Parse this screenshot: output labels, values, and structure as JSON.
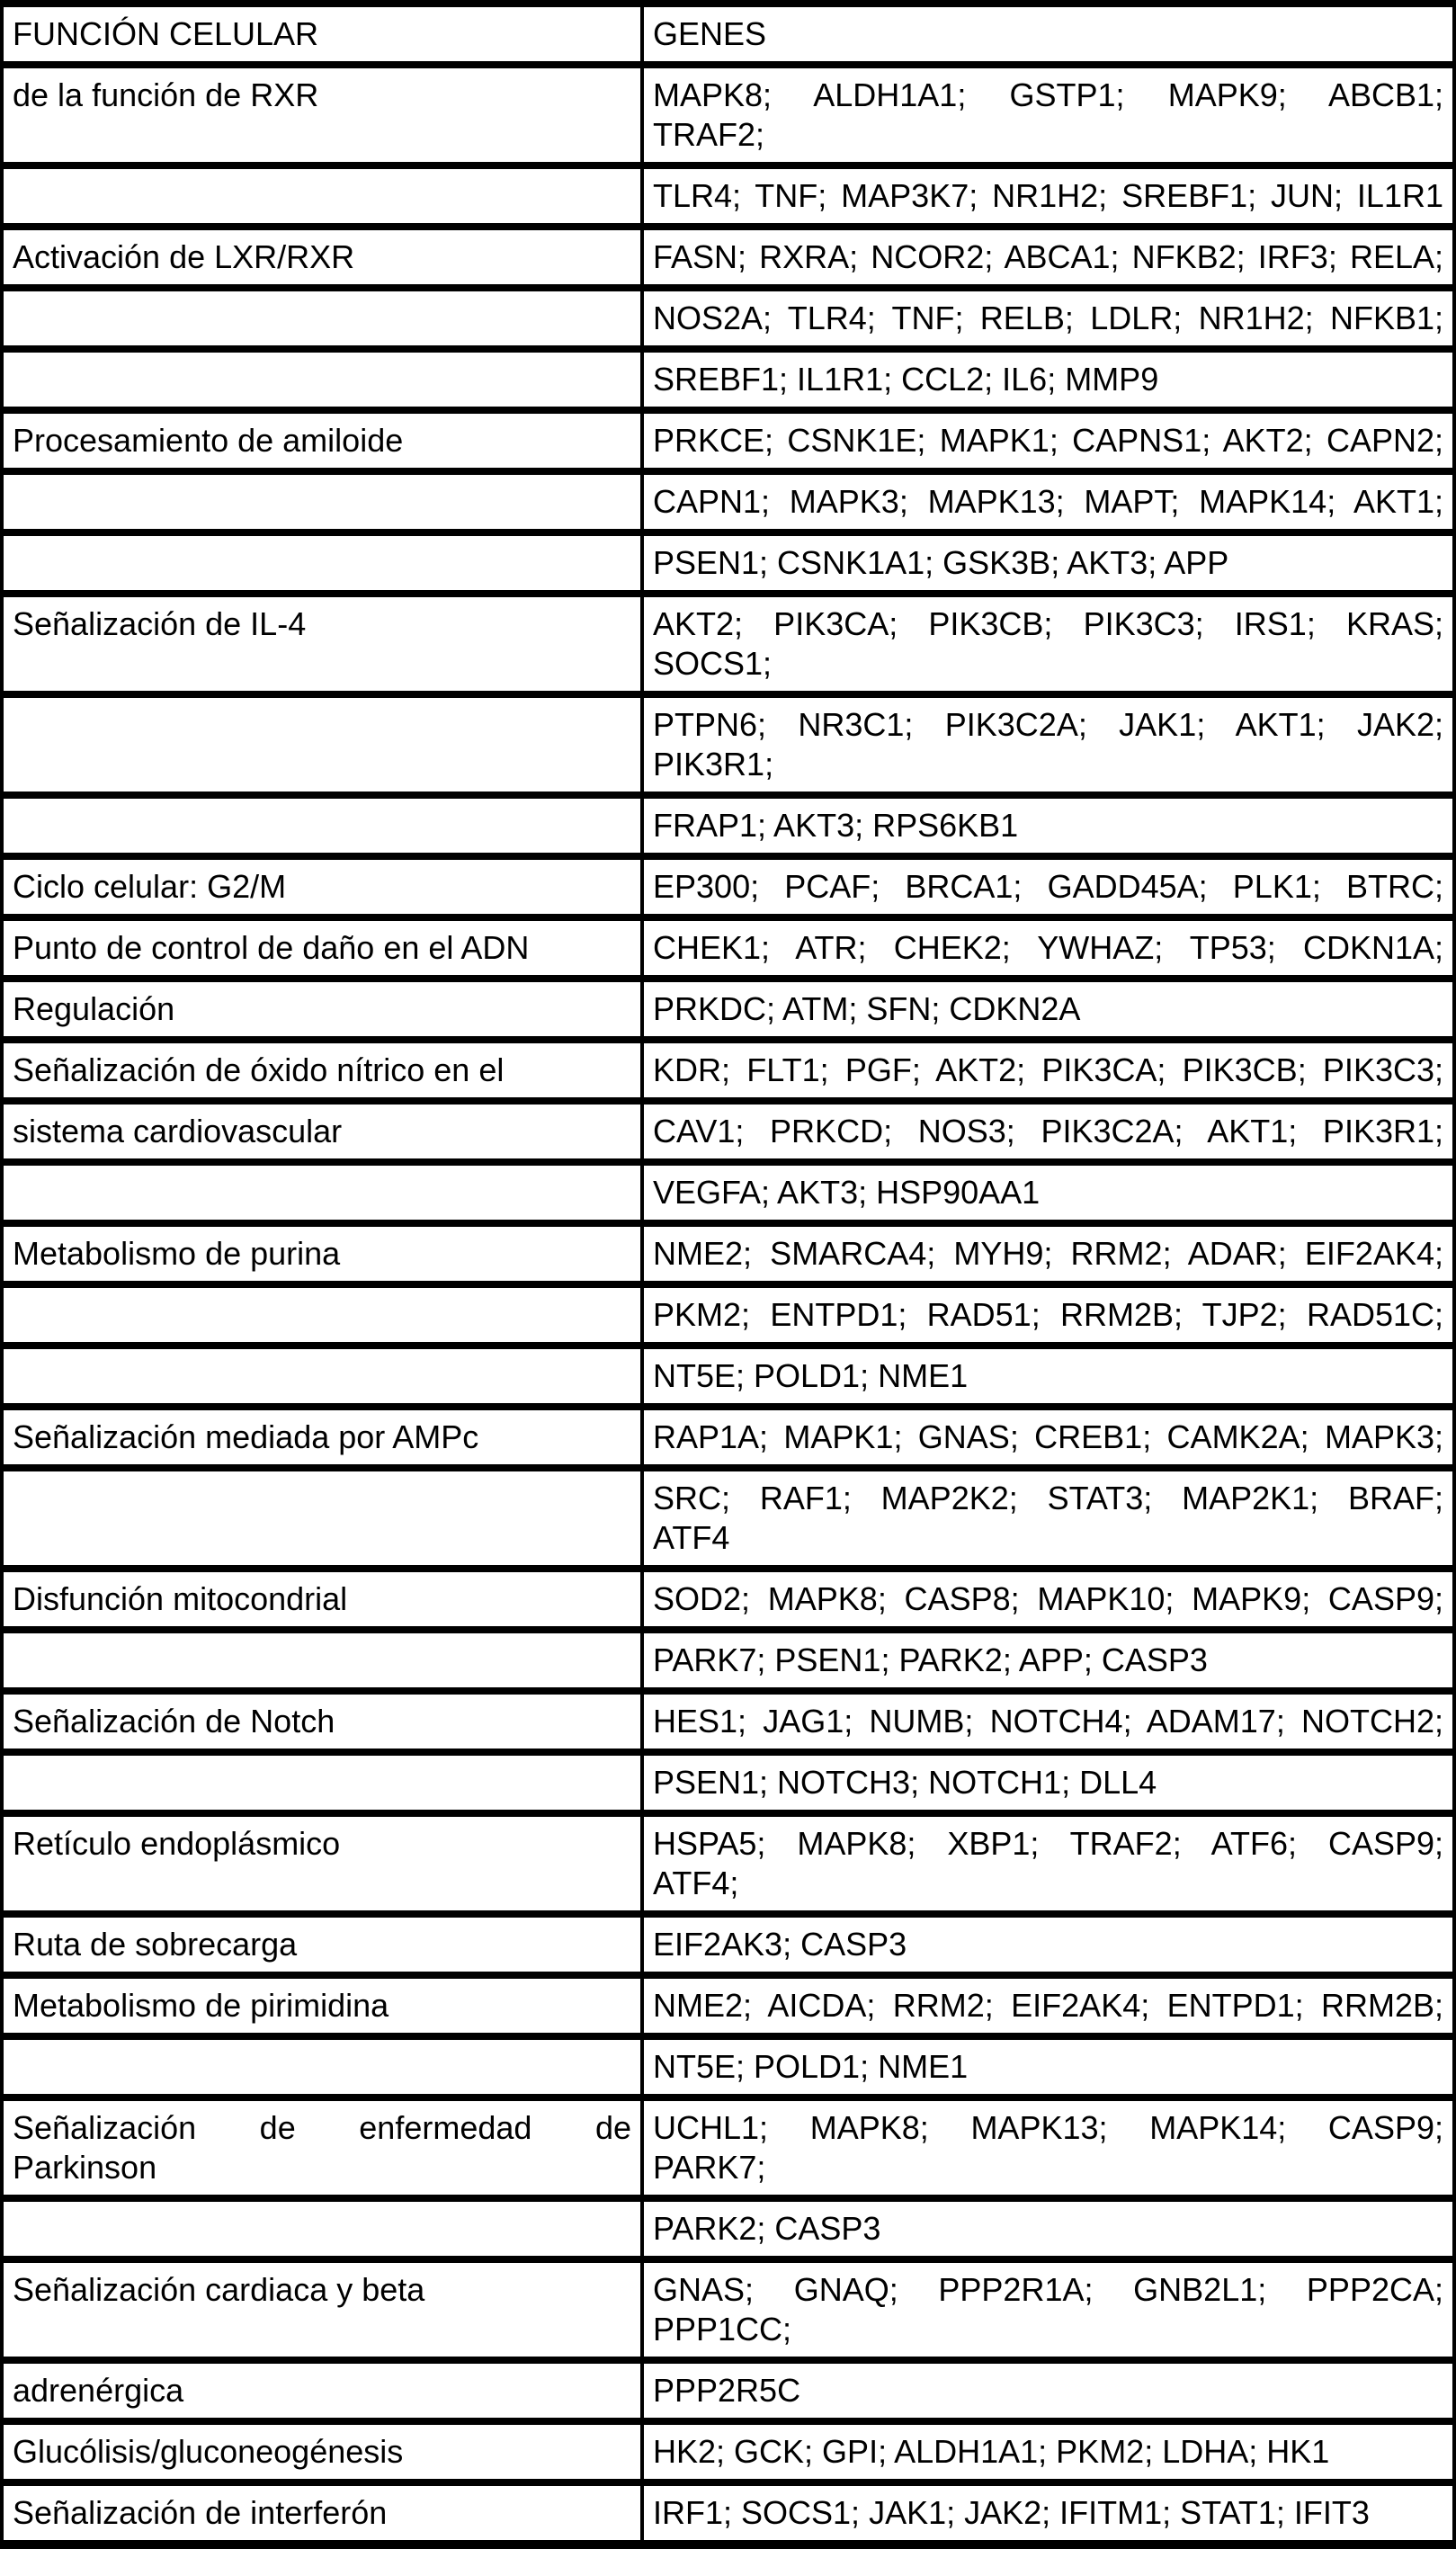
{
  "table": {
    "columns": [
      "FUNCIÓN CELULAR",
      "GENES"
    ],
    "rows": [
      {
        "funcion": {
          "lines": [
            "de la función de RXR"
          ]
        },
        "genes": {
          "lines": [
            "MAPK8; ALDH1A1; GSTP1; MAPK9; ABCB1;",
            "TRAF2;"
          ]
        }
      },
      {
        "funcion": {
          "lines": []
        },
        "genes": {
          "lines": [
            "TLR4; TNF; MAP3K7; NR1H2; SREBF1; JUN; IL1R1"
          ],
          "fill": true
        }
      },
      {
        "funcion": {
          "lines": [
            "Activación de LXR/RXR"
          ]
        },
        "genes": {
          "lines": [
            "FASN; RXRA; NCOR2; ABCA1; NFKB2; IRF3; RELA;"
          ],
          "fill": true
        }
      },
      {
        "funcion": {
          "lines": []
        },
        "genes": {
          "lines": [
            "NOS2A; TLR4; TNF; RELB; LDLR; NR1H2; NFKB1;"
          ],
          "fill": true
        }
      },
      {
        "funcion": {
          "lines": []
        },
        "genes": {
          "lines": [
            "SREBF1; IL1R1; CCL2; IL6; MMP9"
          ]
        }
      },
      {
        "funcion": {
          "lines": [
            "Procesamiento de amiloide"
          ]
        },
        "genes": {
          "lines": [
            "PRKCE; CSNK1E; MAPK1; CAPNS1; AKT2; CAPN2;"
          ],
          "fill": true
        }
      },
      {
        "funcion": {
          "lines": []
        },
        "genes": {
          "lines": [
            "CAPN1; MAPK3; MAPK13; MAPT; MAPK14; AKT1;"
          ],
          "fill": true
        }
      },
      {
        "funcion": {
          "lines": []
        },
        "genes": {
          "lines": [
            "PSEN1; CSNK1A1; GSK3B; AKT3; APP"
          ]
        }
      },
      {
        "funcion": {
          "lines": [
            "Señalización de IL-4"
          ]
        },
        "genes": {
          "lines": [
            "AKT2; PIK3CA; PIK3CB; PIK3C3; IRS1; KRAS;",
            "SOCS1;"
          ]
        }
      },
      {
        "funcion": {
          "lines": []
        },
        "genes": {
          "lines": [
            "PTPN6; NR3C1; PIK3C2A; JAK1; AKT1; JAK2;",
            "PIK3R1;"
          ]
        }
      },
      {
        "funcion": {
          "lines": []
        },
        "genes": {
          "lines": [
            "FRAP1; AKT3; RPS6KB1"
          ]
        }
      },
      {
        "funcion": {
          "lines": [
            "Ciclo celular: G2/M"
          ]
        },
        "genes": {
          "lines": [
            "EP300; PCAF; BRCA1; GADD45A; PLK1; BTRC;"
          ],
          "fill": true
        }
      },
      {
        "funcion": {
          "lines": [
            "Punto de control de daño en el ADN"
          ]
        },
        "genes": {
          "lines": [
            "CHEK1; ATR; CHEK2; YWHAZ; TP53; CDKN1A;"
          ],
          "fill": true
        }
      },
      {
        "funcion": {
          "lines": [
            "Regulación"
          ]
        },
        "genes": {
          "lines": [
            "PRKDC; ATM; SFN; CDKN2A"
          ]
        }
      },
      {
        "funcion": {
          "lines": [
            "Señalización de óxido nítrico en el"
          ]
        },
        "genes": {
          "lines": [
            "KDR; FLT1; PGF; AKT2; PIK3CA; PIK3CB; PIK3C3;"
          ],
          "fill": true
        }
      },
      {
        "funcion": {
          "lines": [
            "sistema cardiovascular"
          ]
        },
        "genes": {
          "lines": [
            "CAV1; PRKCD; NOS3; PIK3C2A; AKT1; PIK3R1;"
          ],
          "fill": true
        }
      },
      {
        "funcion": {
          "lines": []
        },
        "genes": {
          "lines": [
            "VEGFA; AKT3; HSP90AA1"
          ]
        }
      },
      {
        "funcion": {
          "lines": [
            "Metabolismo de purina"
          ]
        },
        "genes": {
          "lines": [
            "NME2; SMARCA4; MYH9; RRM2; ADAR; EIF2AK4;"
          ],
          "fill": true
        }
      },
      {
        "funcion": {
          "lines": []
        },
        "genes": {
          "lines": [
            "PKM2; ENTPD1; RAD51; RRM2B; TJP2; RAD51C;"
          ],
          "fill": true
        }
      },
      {
        "funcion": {
          "lines": []
        },
        "genes": {
          "lines": [
            "NT5E; POLD1; NME1"
          ]
        }
      },
      {
        "funcion": {
          "lines": [
            "Señalización mediada por AMPc"
          ]
        },
        "genes": {
          "lines": [
            "RAP1A; MAPK1; GNAS; CREB1; CAMK2A; MAPK3;"
          ],
          "fill": true
        }
      },
      {
        "funcion": {
          "lines": []
        },
        "genes": {
          "lines": [
            "SRC; RAF1; MAP2K2; STAT3; MAP2K1; BRAF;",
            "ATF4"
          ]
        }
      },
      {
        "funcion": {
          "lines": [
            "Disfunción mitocondrial"
          ]
        },
        "genes": {
          "lines": [
            "SOD2; MAPK8; CASP8; MAPK10; MAPK9; CASP9;"
          ],
          "fill": true
        }
      },
      {
        "funcion": {
          "lines": []
        },
        "genes": {
          "lines": [
            "PARK7; PSEN1; PARK2; APP; CASP3"
          ]
        }
      },
      {
        "funcion": {
          "lines": [
            "Señalización de Notch"
          ]
        },
        "genes": {
          "lines": [
            "HES1; JAG1; NUMB; NOTCH4; ADAM17; NOTCH2;"
          ],
          "fill": true
        }
      },
      {
        "funcion": {
          "lines": []
        },
        "genes": {
          "lines": [
            "PSEN1; NOTCH3; NOTCH1; DLL4"
          ]
        }
      },
      {
        "funcion": {
          "lines": [
            "Retículo endoplásmico"
          ]
        },
        "genes": {
          "lines": [
            "HSPA5; MAPK8; XBP1; TRAF2; ATF6; CASP9;",
            "ATF4;"
          ]
        }
      },
      {
        "funcion": {
          "lines": [
            "Ruta de sobrecarga"
          ]
        },
        "genes": {
          "lines": [
            "EIF2AK3; CASP3"
          ]
        }
      },
      {
        "funcion": {
          "lines": [
            "Metabolismo de pirimidina"
          ]
        },
        "genes": {
          "lines": [
            "NME2; AICDA; RRM2; EIF2AK4; ENTPD1; RRM2B;"
          ],
          "fill": true
        }
      },
      {
        "funcion": {
          "lines": []
        },
        "genes": {
          "lines": [
            "NT5E; POLD1; NME1"
          ]
        }
      },
      {
        "funcion": {
          "lines": [
            "Señalización de enfermedad de",
            "Parkinson"
          ]
        },
        "genes": {
          "lines": [
            "UCHL1; MAPK8; MAPK13; MAPK14; CASP9;",
            "PARK7;"
          ]
        }
      },
      {
        "funcion": {
          "lines": []
        },
        "genes": {
          "lines": [
            "PARK2; CASP3"
          ]
        }
      },
      {
        "funcion": {
          "lines": [
            "Señalización cardiaca y beta"
          ]
        },
        "genes": {
          "lines": [
            "GNAS; GNAQ; PPP2R1A; GNB2L1; PPP2CA;",
            "PPP1CC;"
          ]
        }
      },
      {
        "funcion": {
          "lines": [
            "adrenérgica"
          ]
        },
        "genes": {
          "lines": [
            "PPP2R5C"
          ]
        }
      },
      {
        "funcion": {
          "lines": [
            "Glucólisis/gluconeogénesis"
          ]
        },
        "genes": {
          "lines": [
            "HK2; GCK; GPI; ALDH1A1; PKM2; LDHA; HK1"
          ]
        }
      },
      {
        "funcion": {
          "lines": [
            "Señalización de interferón"
          ]
        },
        "genes": {
          "lines": [
            "IRF1; SOCS1; JAK1; JAK2; IFITM1; STAT1; IFIT3"
          ]
        }
      }
    ]
  }
}
